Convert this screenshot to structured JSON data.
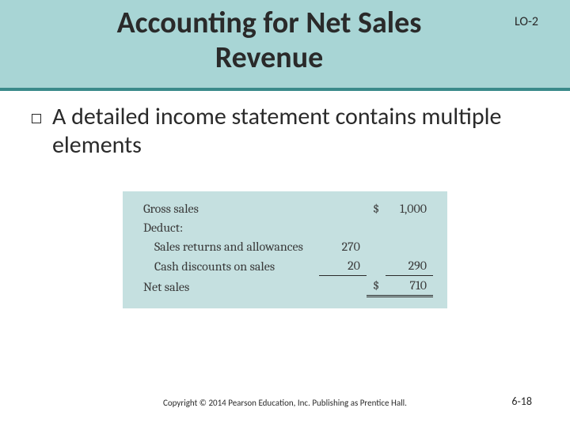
{
  "header": {
    "title": "Accounting for Net Sales Revenue",
    "learning_objective": "LO-2"
  },
  "bullet": {
    "text": "A detailed income statement contains multiple elements"
  },
  "statement": {
    "gross_sales_label": "Gross sales",
    "gross_sales_currency": "$",
    "gross_sales_amount": "1,000",
    "deduct_label": "Deduct:",
    "returns_label": "Sales returns and allowances",
    "returns_amount": "270",
    "discounts_label": "Cash discounts on sales",
    "discounts_amount": "20",
    "deductions_total": "290",
    "net_sales_label": "Net sales",
    "net_sales_currency": "$",
    "net_sales_amount": "710"
  },
  "footer": {
    "copyright": "Copyright © 2014 Pearson Education, Inc. Publishing as Prentice Hall.",
    "page": "6-18"
  }
}
